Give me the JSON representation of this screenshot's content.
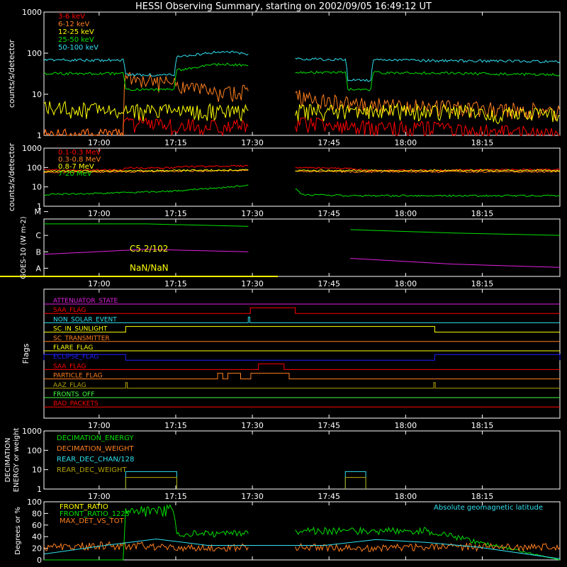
{
  "title": "HESSI Observing Summary, starting on 2002/09/05 16:49:12 UT",
  "x_ticks": [
    "17:00",
    "17:15",
    "17:30",
    "17:45",
    "18:00",
    "18:15"
  ],
  "x_tick_minutes": [
    10.8,
    25.8,
    40.8,
    55.8,
    70.8,
    85.8
  ],
  "x_range_minutes": [
    0,
    101
  ],
  "gap_minutes": [
    40.4,
    49.2
  ],
  "colors": {
    "red": "#ff0000",
    "orange": "#ff7f1e",
    "yellow": "#ffff00",
    "green": "#00e000",
    "cyan": "#30e0f0",
    "magenta": "#e020e0",
    "blue": "#2020ff",
    "olive": "#b0a000",
    "lightgreen": "#40ff40",
    "brown": "#c05020"
  },
  "chart_data": [
    {
      "type": "line",
      "panel": "low-energy",
      "ylabel": "counts/s/detector",
      "y_scale": "log",
      "ylim": [
        1,
        1000
      ],
      "y_ticks": [
        "1",
        "10",
        "100",
        "1000"
      ],
      "series": [
        {
          "name": "3-6 keV",
          "color": "red",
          "x": [
            0,
            15.5,
            15.5,
            25,
            40,
            49.2,
            60,
            75,
            101
          ],
          "values": [
            1,
            1,
            2,
            1.8,
            1.6,
            2,
            1.6,
            1.5,
            1
          ]
        },
        {
          "name": "6-12 keV",
          "color": "orange",
          "x": [
            0,
            15.5,
            16,
            25,
            35,
            40,
            49.2,
            60,
            75,
            101
          ],
          "values": [
            1,
            1,
            25,
            18,
            10,
            12,
            9,
            6,
            5,
            4
          ]
        },
        {
          "name": "12-25 keV",
          "color": "yellow",
          "x": [
            0,
            15.5,
            25,
            40,
            49.2,
            60,
            75,
            101
          ],
          "values": [
            5,
            4,
            4,
            4,
            4,
            4,
            4,
            3
          ]
        },
        {
          "name": "25-50 keV",
          "color": "green",
          "x": [
            0,
            15.5,
            16,
            25.5,
            26,
            35,
            40,
            49.2,
            59,
            59.5,
            64,
            64.5,
            101
          ],
          "values": [
            32,
            32,
            13,
            13,
            38,
            55,
            50,
            34,
            34,
            13,
            13,
            34,
            30
          ]
        },
        {
          "name": "50-100 keV",
          "color": "cyan",
          "x": [
            0,
            15.5,
            16,
            25.5,
            26,
            35,
            40,
            49.2,
            59,
            59.5,
            64,
            64.5,
            101
          ],
          "values": [
            67,
            68,
            30,
            30,
            80,
            110,
            95,
            72,
            70,
            22,
            22,
            68,
            62
          ]
        }
      ]
    },
    {
      "type": "line",
      "panel": "high-energy",
      "ylabel": "counts/s/detector",
      "y_scale": "log",
      "ylim": [
        1,
        1000
      ],
      "y_ticks": [
        "1",
        "10",
        "100",
        "1000"
      ],
      "series": [
        {
          "name": "0.1-0.3 MeV",
          "color": "red",
          "x": [
            0,
            15.5,
            16,
            25.5,
            26,
            40,
            49.2,
            59,
            64,
            101
          ],
          "values": [
            75,
            75,
            95,
            95,
            110,
            120,
            100,
            90,
            70,
            80
          ]
        },
        {
          "name": "0.3-0.8 MeV",
          "color": "orange",
          "x": [
            0,
            15.5,
            25.5,
            40,
            49.2,
            60,
            101
          ],
          "values": [
            55,
            60,
            65,
            70,
            65,
            60,
            60
          ]
        },
        {
          "name": "0.8-7 MeV",
          "color": "yellow",
          "x": [
            0,
            25,
            40,
            49.2,
            101
          ],
          "values": [
            65,
            70,
            75,
            70,
            70
          ]
        },
        {
          "name": "7-20 MeV",
          "color": "green",
          "x": [
            0,
            15.5,
            25,
            35,
            40,
            49.2,
            50.5,
            60,
            101
          ],
          "values": [
            4,
            5,
            6,
            9,
            12,
            8,
            4,
            3.5,
            3.5
          ]
        }
      ]
    },
    {
      "type": "line",
      "panel": "goes",
      "ylabel": "GOES-10 (W m-2)",
      "y_ticks": [
        "A",
        "B",
        "C",
        "M"
      ],
      "ylim": [
        0,
        3.5
      ],
      "annotations": [
        "C5.2/102",
        "NaN/NaN"
      ],
      "series": [
        {
          "color": "green",
          "x": [
            0,
            20,
            40,
            60,
            80,
            101
          ],
          "values": [
            3.2,
            3.2,
            3.05,
            2.85,
            2.65,
            2.5
          ]
        },
        {
          "color": "magenta",
          "x": [
            0,
            20,
            40,
            60,
            80,
            101
          ],
          "values": [
            1.35,
            1.65,
            1.5,
            1.1,
            0.75,
            0.55
          ]
        }
      ]
    },
    {
      "type": "line",
      "panel": "flags",
      "ylabel": "Flags",
      "flags": [
        {
          "name": "ATTENUATOR_STATE",
          "color": "magenta",
          "segments": []
        },
        {
          "name": "SAA_FLAG",
          "color": "red",
          "segments": [
            [
              40.4,
              49.2
            ]
          ]
        },
        {
          "name": "NON_SOLAR_EVENT",
          "color": "cyan",
          "segments": [
            [
              40.0,
              40.3
            ]
          ]
        },
        {
          "name": "SC_IN_SUNLIGHT",
          "color": "yellow",
          "segments": [
            [
              16,
              76.5
            ]
          ]
        },
        {
          "name": "SC_TRANSMITTER",
          "color": "orange",
          "segments": []
        },
        {
          "name": "FLARE_FLAG",
          "color": "yellow",
          "segments": []
        },
        {
          "name": "ECLIPSE_FLAG",
          "color": "blue",
          "segments": [
            [
              0,
              16
            ],
            [
              76.5,
              101
            ]
          ]
        },
        {
          "name": "SAA_FLAG",
          "color": "red",
          "segments": [
            [
              42,
              47
            ]
          ]
        },
        {
          "name": "PARTICLE_FLAG",
          "color": "orange",
          "segments": [
            [
              34,
              35
            ],
            [
              36,
              38.5
            ],
            [
              40.5,
              48
            ]
          ]
        },
        {
          "name": "AAZ_FLAG",
          "color": "olive",
          "segments": [
            [
              16,
              16.3
            ],
            [
              76.3,
              76.6
            ]
          ]
        },
        {
          "name": "FRONTS_OFF",
          "color": "lightgreen",
          "segments": []
        },
        {
          "name": "BAD_PACKETS",
          "color": "red",
          "segments": []
        }
      ]
    },
    {
      "type": "line",
      "panel": "decimation",
      "ylabel": "DECIMATION ENERGY or weight",
      "y_scale": "log",
      "ylim": [
        1,
        1000
      ],
      "y_ticks": [
        "1",
        "10",
        "100",
        "1000"
      ],
      "series": [
        {
          "name": "DECIMATION_ENERGY",
          "color": "green",
          "x": [],
          "values": []
        },
        {
          "name": "DECIMATION_WEIGHT",
          "color": "orange",
          "x": [],
          "values": []
        },
        {
          "name": "REAR_DEC_CHAN/128",
          "color": "cyan",
          "x": [
            16,
            26,
            59,
            63
          ],
          "values": [
            8,
            8,
            8,
            8
          ]
        },
        {
          "name": "REAR_DEC_WEIGHT",
          "color": "olive",
          "x": [
            16,
            26,
            59,
            63
          ],
          "values": [
            4,
            4,
            4,
            4
          ]
        }
      ]
    },
    {
      "type": "line",
      "panel": "ratios",
      "ylabel": "Degrees or %",
      "ylim": [
        0,
        100
      ],
      "y_ticks": [
        "0",
        "20",
        "40",
        "60",
        "80",
        "100"
      ],
      "annotation": "Absolute geomagnetic latitude",
      "series": [
        {
          "name": "FRONT_RATIO",
          "color": "yellow",
          "x": [],
          "values": []
        },
        {
          "name": "FRONT_RATIO_1225",
          "color": "green",
          "x": [
            0,
            15.5,
            16,
            25.5,
            26,
            40,
            49.2,
            60,
            75,
            101
          ],
          "values": [
            0,
            0,
            85,
            85,
            45,
            45,
            50,
            50,
            50,
            0
          ]
        },
        {
          "name": "MAX_DET_VS_TOT",
          "color": "orange",
          "x": [
            0,
            15,
            30,
            40,
            49.2,
            60,
            75,
            101
          ],
          "values": [
            22,
            25,
            20,
            22,
            22,
            20,
            22,
            22
          ]
        },
        {
          "name": "Absolute geomagnetic latitude",
          "color": "cyan",
          "x": [
            0,
            12,
            22,
            32,
            43,
            48,
            55,
            65,
            75,
            85,
            101
          ],
          "values": [
            10,
            25,
            36,
            25,
            1,
            10,
            25,
            35,
            30,
            22,
            2
          ]
        }
      ]
    }
  ]
}
